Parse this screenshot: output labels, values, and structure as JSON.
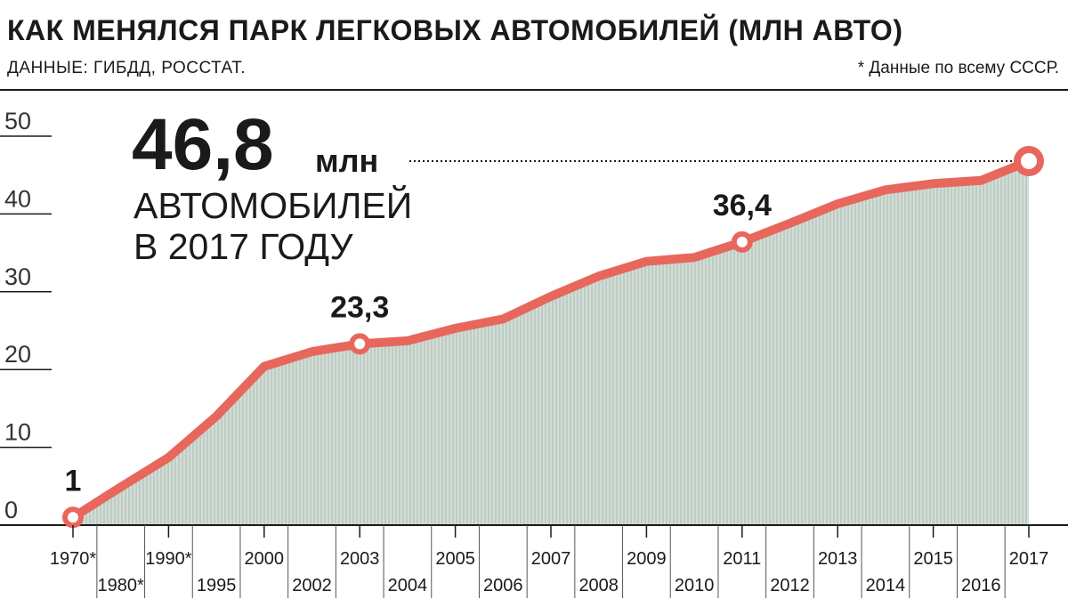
{
  "header": {
    "title": "КАК МЕНЯЛСЯ ПАРК ЛЕГКОВЫХ АВТОМОБИЛЕЙ (МЛН АВТО)",
    "source": "ДАННЫЕ: ГИБДД, РОССТАТ.",
    "footnote": "* Данные по всему СССР."
  },
  "highlight": {
    "value": "46,8",
    "unit": "млн",
    "line1": "АВТОМОБИЛЕЙ",
    "line2": "В 2017 ГОДУ"
  },
  "colors": {
    "line": "#e8675c",
    "area": "#d2ddd6",
    "hatch": "#a9bcb1",
    "text": "#1a1a1a"
  },
  "chart_data": {
    "type": "area",
    "title": "КАК МЕНЯЛСЯ ПАРК ЛЕГКОВЫХ АВТОМОБИЛЕЙ (МЛН АВТО)",
    "ylim": [
      0,
      50
    ],
    "yticks": [
      0,
      10,
      20,
      30,
      40,
      50
    ],
    "grid": false,
    "categories": [
      "1970*",
      "1980*",
      "1990*",
      "1995",
      "2000",
      "2002",
      "2003",
      "2004",
      "2005",
      "2006",
      "2007",
      "2008",
      "2009",
      "2010",
      "2011",
      "2012",
      "2013",
      "2014",
      "2015",
      "2016",
      "2017"
    ],
    "values": [
      1,
      4.9,
      8.7,
      14,
      20.4,
      22.3,
      23.3,
      23.7,
      25.3,
      26.5,
      29.4,
      32.0,
      33.9,
      34.4,
      36.4,
      38.8,
      41.3,
      43.1,
      43.9,
      44.3,
      46.8
    ],
    "data_labels": [
      {
        "index": 0,
        "text": "1"
      },
      {
        "index": 6,
        "text": "23,3"
      },
      {
        "index": 14,
        "text": "36,4"
      }
    ],
    "markers": [
      0,
      6,
      14,
      20
    ],
    "reference_line_index": 20
  }
}
